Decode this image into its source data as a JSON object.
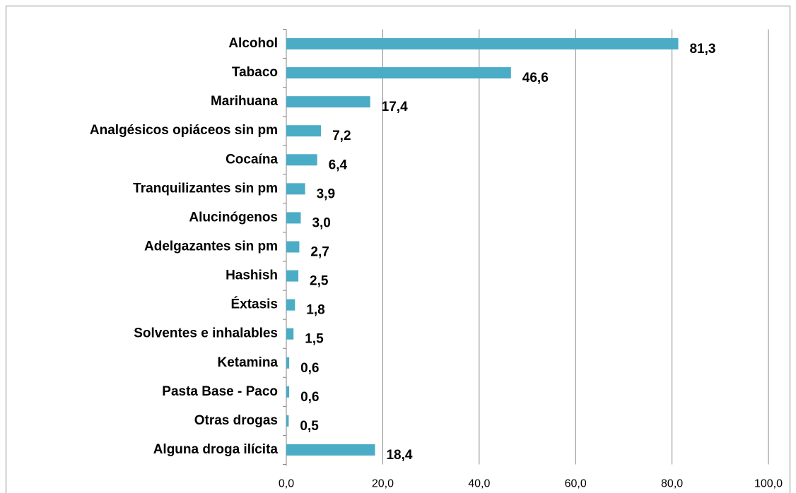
{
  "chart_data": {
    "type": "barh",
    "categories": [
      "Alcohol",
      "Tabaco",
      "Marihuana",
      "Analgésicos opiáceos sin pm",
      "Cocaína",
      "Tranquilizantes sin pm",
      "Alucinógenos",
      "Adelgazantes sin pm",
      "Hashish",
      "Éxtasis",
      "Solventes e inhalables",
      "Ketamina",
      "Pasta Base - Paco",
      "Otras drogas",
      "Alguna droga ilícita"
    ],
    "values": [
      81.3,
      46.6,
      17.4,
      7.2,
      6.4,
      3.9,
      3.0,
      2.7,
      2.5,
      1.8,
      1.5,
      0.6,
      0.6,
      0.5,
      18.4
    ],
    "value_labels": [
      "81,3",
      "46,6",
      "17,4",
      "7,2",
      "6,4",
      "3,9",
      "3,0",
      "2,7",
      "2,5",
      "1,8",
      "1,5",
      "0,6",
      "0,6",
      "0,5",
      "18,4"
    ],
    "color": "#4bacc6",
    "xlim": [
      0,
      100
    ],
    "xticks": [
      {
        "value": 0,
        "label": "0,0"
      },
      {
        "value": 20,
        "label": "20,0"
      },
      {
        "value": 40,
        "label": "40,0"
      },
      {
        "value": 60,
        "label": "60,0"
      },
      {
        "value": 80,
        "label": "80,0"
      },
      {
        "value": 100,
        "label": "100,0"
      }
    ],
    "grid": true
  }
}
